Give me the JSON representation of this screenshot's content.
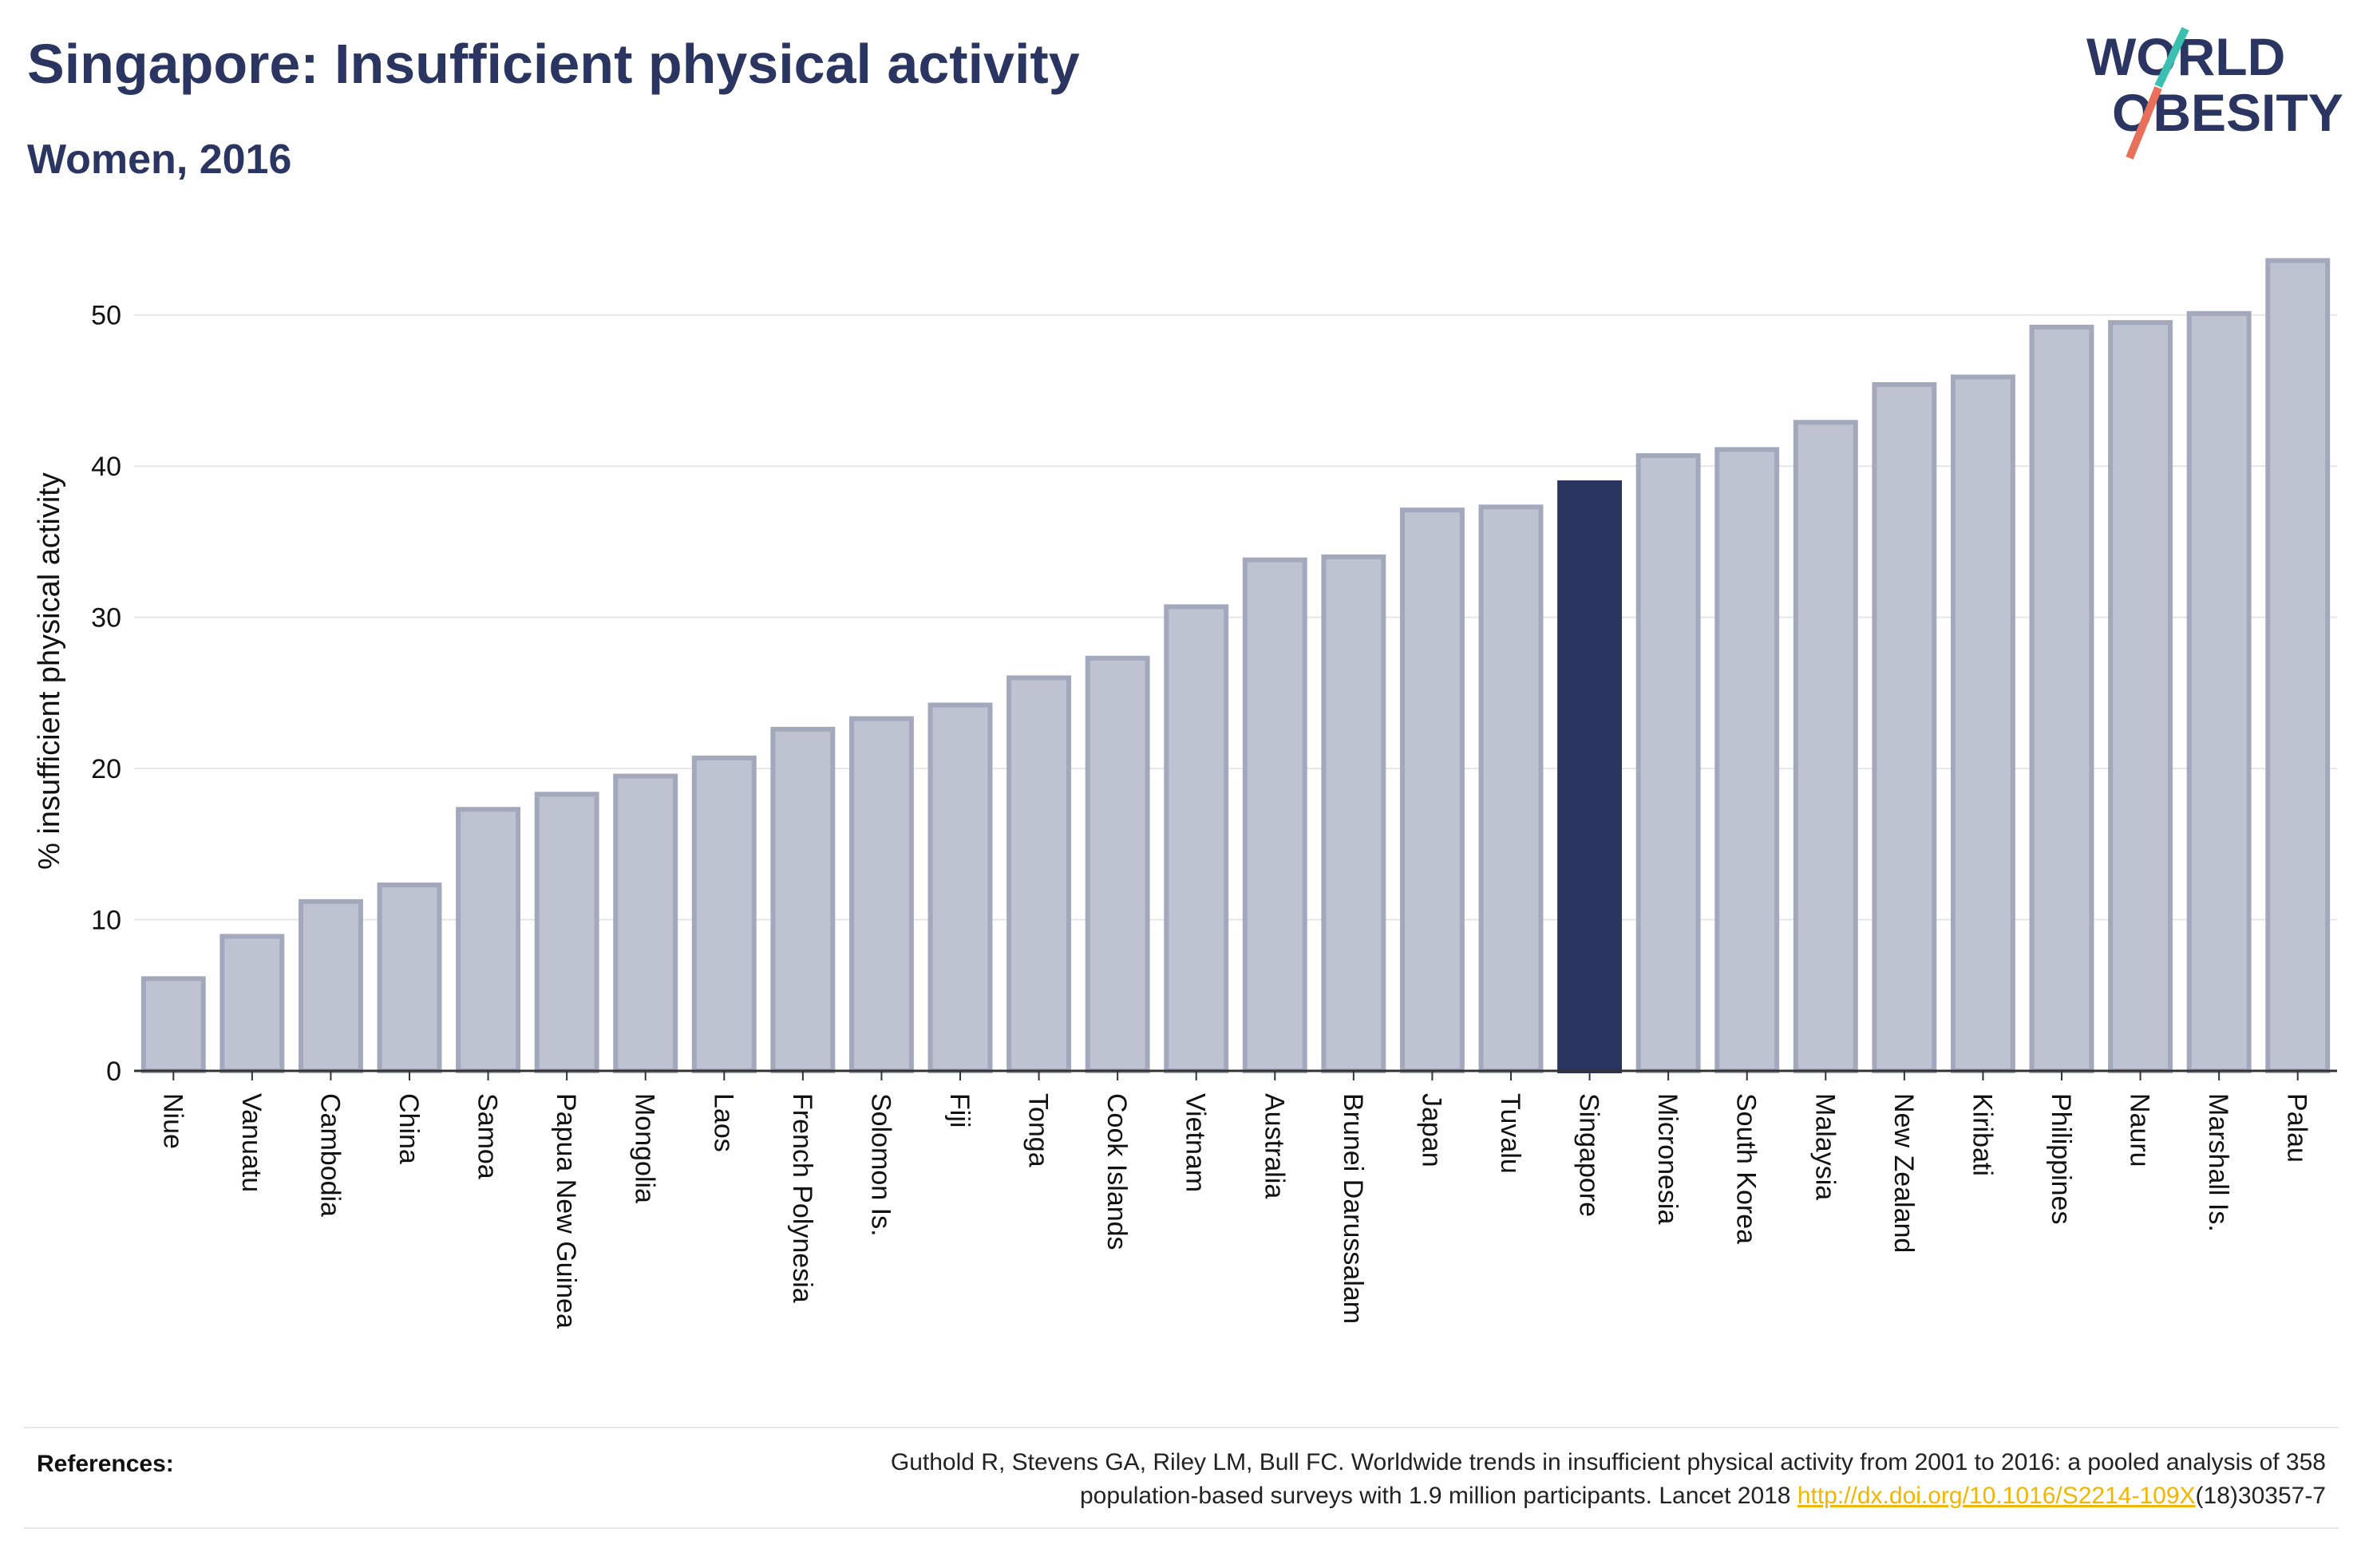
{
  "header": {
    "title": "Singapore: Insufficient physical activity",
    "subtitle": "Women, 2016"
  },
  "logo": {
    "line1": "WORLD",
    "line2": "OBESITY",
    "slash_colors": [
      "#3bbfb0",
      "#e8705a"
    ],
    "text_color": "#2b3561"
  },
  "chart_data": {
    "type": "bar",
    "ylabel": "% insufficient physical activity",
    "ylim": [
      0,
      55
    ],
    "yticks": [
      0,
      10,
      20,
      30,
      40,
      50
    ],
    "grid": true,
    "highlight": "Singapore",
    "colors": {
      "bar": "#bfc2d0",
      "bar_edge": "#a3a8bd",
      "highlight": "#2b3561",
      "grid": "#e6e6e6",
      "axis": "#333333"
    },
    "categories": [
      "Niue",
      "Vanuatu",
      "Cambodia",
      "China",
      "Samoa",
      "Papua New Guinea",
      "Mongolia",
      "Laos",
      "French Polynesia",
      "Solomon Is.",
      "Fiji",
      "Tonga",
      "Cook Islands",
      "Vietnam",
      "Australia",
      "Brunei Darussalam",
      "Japan",
      "Tuvalu",
      "Singapore",
      "Micronesia",
      "South Korea",
      "Malaysia",
      "New Zealand",
      "Kiribati",
      "Philippines",
      "Nauru",
      "Marshall Is.",
      "Palau"
    ],
    "values": [
      6.1,
      8.9,
      11.2,
      12.3,
      17.3,
      18.3,
      19.5,
      20.7,
      22.6,
      23.3,
      24.2,
      26.0,
      27.3,
      30.7,
      33.8,
      34.0,
      37.1,
      37.3,
      38.9,
      40.7,
      41.1,
      42.9,
      45.4,
      45.9,
      49.2,
      49.5,
      50.1,
      53.6
    ]
  },
  "references": {
    "label": "References:",
    "text_line1": "Guthold R, Stevens GA, Riley LM, Bull FC. Worldwide trends in insufficient physical activity from 2001 to 2016: a pooled analysis of 358",
    "text_line2_pre": "population-based surveys with 1.9 million participants. Lancet 2018 ",
    "link": "http://dx.doi.org/10.1016/S2214-109X",
    "text_line2_post": "(18)30357-7"
  }
}
